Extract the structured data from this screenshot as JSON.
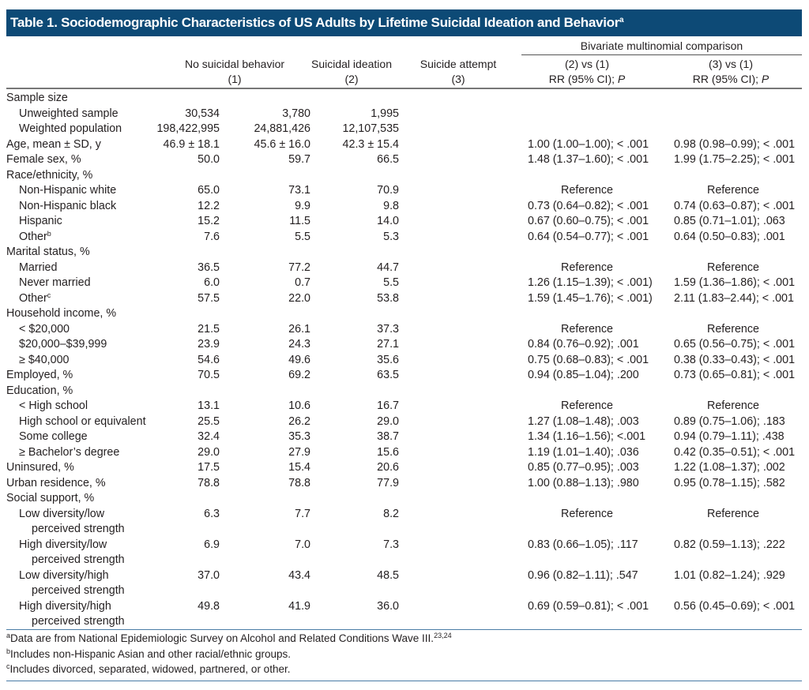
{
  "title": {
    "text": "Table 1. Sociodemographic Characteristics of US Adults by Lifetime Suicidal Ideation and Behavior",
    "sup": "a"
  },
  "header": {
    "group": "Bivariate multinomial comparison",
    "col1": [
      "No suicidal behavior",
      "(1)"
    ],
    "col2": [
      "Suicidal ideation",
      "(2)"
    ],
    "col3": [
      "Suicide attempt",
      "(3)"
    ],
    "col4": [
      "(2) vs (1)",
      "RR (95% CI); ",
      "P"
    ],
    "col5": [
      "(3) vs (1)",
      "RR (95% CI); ",
      "P"
    ]
  },
  "rows": [
    {
      "label": "Sample size",
      "indent": false
    },
    {
      "label": "Unweighted sample",
      "indent": true,
      "v": [
        "30,534",
        "3,780",
        "1,995"
      ]
    },
    {
      "label": "Weighted population",
      "indent": true,
      "v": [
        "198,422,995",
        "24,881,426",
        "12,107,535"
      ]
    },
    {
      "label": "Age, mean ± SD, y",
      "v": [
        "46.9 ± 18.1",
        "45.6 ± 16.0",
        "42.3 ± 15.4"
      ],
      "rr": [
        "1.00 (1.00–1.00); < .001",
        "0.98 (0.98–0.99); < .001"
      ]
    },
    {
      "label": "Female sex, %",
      "v": [
        "50.0",
        "59.7",
        "66.5"
      ],
      "rr": [
        "1.48 (1.37–1.60); < .001",
        "1.99 (1.75–2.25); < .001"
      ]
    },
    {
      "label": "Race/ethnicity, %"
    },
    {
      "label": "Non-Hispanic white",
      "indent": true,
      "v": [
        "65.0",
        "73.1",
        "70.9"
      ],
      "rr": [
        "Reference",
        "Reference"
      ]
    },
    {
      "label": "Non-Hispanic black",
      "indent": true,
      "v": [
        "12.2",
        "9.9",
        "9.8"
      ],
      "rr": [
        "0.73 (0.64–0.82); < .001",
        "0.74 (0.63–0.87); < .001"
      ]
    },
    {
      "label": "Hispanic",
      "indent": true,
      "v": [
        "15.2",
        "11.5",
        "14.0"
      ],
      "rr": [
        "0.67 (0.60–0.75); < .001",
        "0.85 (0.71–1.01); .063"
      ]
    },
    {
      "label": "Other",
      "sup": "b",
      "indent": true,
      "v": [
        "7.6",
        "5.5",
        "5.3"
      ],
      "rr": [
        "0.64 (0.54–0.77); < .001",
        "0.64 (0.50–0.83); .001"
      ]
    },
    {
      "label": "Marital status, %"
    },
    {
      "label": "Married",
      "indent": true,
      "v": [
        "36.5",
        "77.2",
        "44.7"
      ],
      "rr": [
        "Reference",
        "Reference"
      ]
    },
    {
      "label": "Never married",
      "indent": true,
      "v": [
        "6.0",
        "0.7",
        "5.5"
      ],
      "rr": [
        "1.26 (1.15–1.39); < .001)",
        "1.59 (1.36–1.86); < .001"
      ]
    },
    {
      "label": "Other",
      "sup": "c",
      "indent": true,
      "v": [
        "57.5",
        "22.0",
        "53.8"
      ],
      "rr": [
        "1.59 (1.45–1.76); < .001)",
        "2.11 (1.83–2.44); < .001"
      ]
    },
    {
      "label": "Household income, %"
    },
    {
      "label": "< $20,000",
      "indent": true,
      "v": [
        "21.5",
        "26.1",
        "37.3"
      ],
      "rr": [
        "Reference",
        "Reference"
      ]
    },
    {
      "label": "$20,000–$39,999",
      "indent": true,
      "v": [
        "23.9",
        "24.3",
        "27.1"
      ],
      "rr": [
        "0.84 (0.76–0.92); .001",
        "0.65 (0.56–0.75); < .001"
      ]
    },
    {
      "label": "≥ $40,000",
      "indent": true,
      "v": [
        "54.6",
        "49.6",
        "35.6"
      ],
      "rr": [
        "0.75 (0.68–0.83); < .001",
        "0.38 (0.33–0.43); < .001"
      ]
    },
    {
      "label": "Employed, %",
      "v": [
        "70.5",
        "69.2",
        "63.5"
      ],
      "rr": [
        "0.94 (0.85–1.04); .200",
        "0.73 (0.65–0.81); < .001"
      ]
    },
    {
      "label": "Education, %"
    },
    {
      "label": "< High school",
      "indent": true,
      "v": [
        "13.1",
        "10.6",
        "16.7"
      ],
      "rr": [
        "Reference",
        "Reference"
      ]
    },
    {
      "label": "High school or equivalent",
      "indent": true,
      "v": [
        "25.5",
        "26.2",
        "29.0"
      ],
      "rr": [
        "1.27 (1.08–1.48); .003",
        "0.89 (0.75–1.06); .183"
      ]
    },
    {
      "label": "Some college",
      "indent": true,
      "v": [
        "32.4",
        "35.3",
        "38.7"
      ],
      "rr": [
        "1.34 (1.16–1.56); <.001",
        "0.94 (0.79–1.11); .438"
      ]
    },
    {
      "label": "≥ Bachelor’s degree",
      "indent": true,
      "v": [
        "29.0",
        "27.9",
        "15.6"
      ],
      "rr": [
        "1.19 (1.01–1.40); .036",
        "0.42 (0.35–0.51); < .001"
      ]
    },
    {
      "label": "Uninsured, %",
      "v": [
        "17.5",
        "15.4",
        "20.6"
      ],
      "rr": [
        "0.85 (0.77–0.95); .003",
        "1.22 (1.08–1.37); .002"
      ]
    },
    {
      "label": "Urban residence, %",
      "v": [
        "78.8",
        "78.8",
        "77.9"
      ],
      "rr": [
        "1.00 (0.88–1.13); .980",
        "0.95 (0.78–1.15); .582"
      ]
    },
    {
      "label": "Social support, %"
    },
    {
      "label": "Low diversity/low",
      "cont": "perceived strength",
      "indent": true,
      "v": [
        "6.3",
        "7.7",
        "8.2"
      ],
      "rr": [
        "Reference",
        "Reference"
      ]
    },
    {
      "label": "High diversity/low",
      "cont": "perceived strength",
      "indent": true,
      "v": [
        "6.9",
        "7.0",
        "7.3"
      ],
      "rr": [
        "0.83 (0.66–1.05); .117",
        "0.82 (0.59–1.13); .222"
      ]
    },
    {
      "label": "Low diversity/high",
      "cont": "perceived strength",
      "indent": true,
      "v": [
        "37.0",
        "43.4",
        "48.5"
      ],
      "rr": [
        "0.96 (0.82–1.11); .547",
        "1.01 (0.82–1.24); .929"
      ]
    },
    {
      "label": "High diversity/high",
      "cont": "perceived strength",
      "indent": true,
      "v": [
        "49.8",
        "41.9",
        "36.0"
      ],
      "rr": [
        "0.69 (0.59–0.81); < .001",
        "0.56 (0.45–0.69); < .001"
      ]
    }
  ],
  "footnotes": [
    {
      "mark": "a",
      "text": "Data are from National Epidemiologic Survey on Alcohol and Related Conditions Wave III.",
      "ref": "23,24"
    },
    {
      "mark": "b",
      "text": "Includes non-Hispanic Asian and other racial/ethnic groups."
    },
    {
      "mark": "c",
      "text": "Includes divorced, separated, widowed, partnered, or other."
    }
  ],
  "colors": {
    "title_bg": "#0d4a76",
    "rule_blue": "#4a7ca6"
  }
}
